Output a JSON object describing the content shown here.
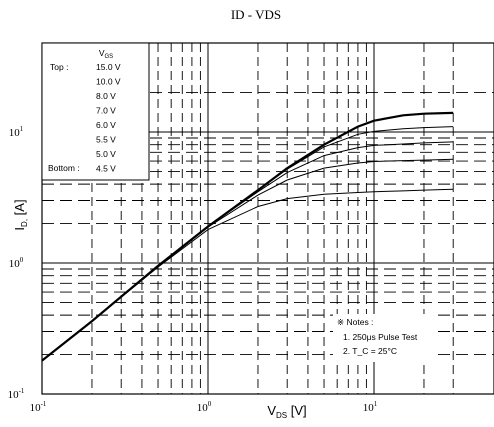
{
  "chart_data": {
    "type": "line",
    "title": "ID - VDS",
    "xlabel": "V_DS [V]",
    "ylabel": "I_D, [A]",
    "xscale": "log",
    "yscale": "log",
    "xlim": [
      0.1,
      30
    ],
    "ylim": [
      0.1,
      20
    ],
    "grid": true,
    "x_ticks": [
      {
        "value": 0.1,
        "label": "10",
        "exp": "-1"
      },
      {
        "value": 1,
        "label": "10",
        "exp": "0"
      },
      {
        "value": 10,
        "label": "10",
        "exp": "1"
      }
    ],
    "y_ticks": [
      {
        "value": 0.1,
        "label": "10",
        "exp": "-1"
      },
      {
        "value": 1,
        "label": "10",
        "exp": "0"
      },
      {
        "value": 10,
        "label": "10",
        "exp": "1"
      }
    ],
    "legend": {
      "header": "V_GS",
      "placement": "top-left",
      "top_label": "Top :",
      "bottom_label": "Bottom :",
      "entries": [
        "15.0 V",
        "10.0 V",
        "8.0 V",
        "7.0 V",
        "6.0 V",
        "5.5 V",
        "5.0 V",
        "4.5 V"
      ]
    },
    "notes": {
      "title": "※ Notes :",
      "lines": [
        "1. 250μs Pulse Test",
        "2. T_C = 25°C"
      ],
      "placement": "bottom-right"
    },
    "series": [
      {
        "x": [
          0.1,
          0.2,
          0.5,
          1,
          2,
          3,
          5,
          8,
          10,
          15,
          20,
          30
        ],
        "y": [
          0.18,
          0.36,
          0.95,
          1.9,
          3.6,
          5.3,
          8.0,
          11.0,
          12.2,
          13.4,
          13.8,
          14.0
        ]
      },
      {
        "x": [
          0.1,
          0.2,
          0.5,
          1,
          2,
          3,
          5,
          8,
          10,
          15,
          20,
          30
        ],
        "y": [
          0.18,
          0.36,
          0.95,
          1.9,
          3.6,
          5.2,
          7.7,
          9.6,
          10.1,
          10.6,
          10.8,
          11.0
        ]
      },
      {
        "x": [
          0.1,
          0.2,
          0.5,
          1,
          2,
          3,
          5,
          8,
          10,
          15,
          20,
          30
        ],
        "y": [
          0.18,
          0.36,
          0.95,
          1.9,
          3.5,
          4.9,
          6.6,
          7.6,
          7.9,
          8.1,
          8.25,
          8.4
        ]
      },
      {
        "x": [
          0.1,
          0.2,
          0.5,
          1,
          2,
          3,
          5,
          8,
          10,
          15,
          20,
          30
        ],
        "y": [
          0.18,
          0.36,
          0.94,
          1.88,
          3.3,
          4.3,
          5.3,
          5.8,
          5.95,
          6.05,
          6.1,
          6.2
        ]
      },
      {
        "x": [
          0.1,
          0.2,
          0.5,
          1,
          2,
          3,
          5,
          8,
          10,
          15,
          20,
          30
        ],
        "y": [
          0.18,
          0.36,
          0.93,
          1.8,
          2.7,
          3.1,
          3.35,
          3.45,
          3.5,
          3.55,
          3.6,
          3.65
        ]
      }
    ]
  }
}
